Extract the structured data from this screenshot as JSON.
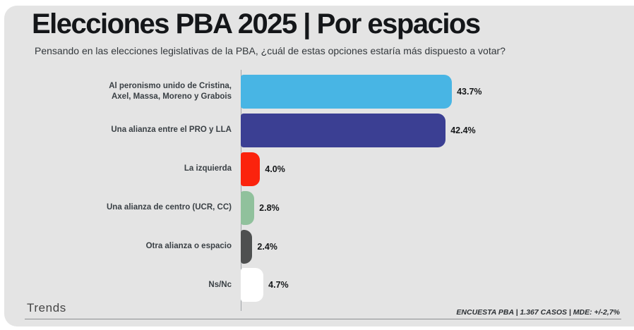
{
  "header": {
    "title": "Elecciones PBA 2025 | Por espacios",
    "subtitle": "Pensando en las elecciones legislativas de la PBA, ¿cuál de estas opciones estaría más dispuesto a votar?"
  },
  "footer": {
    "brand": "Trends",
    "source_note": "ENCUESTA PBA | 1.367 CASOS | MDE: +/-2,7%"
  },
  "colors": {
    "canvas_background": "#E4E4E4",
    "axis_line": "#9FA4A7",
    "title_text": "#141619",
    "label_text": "#3A4045"
  },
  "chart_data": {
    "type": "bar",
    "orientation": "horizontal",
    "title": "Elecciones PBA 2025 | Por espacios",
    "subtitle": "Pensando en las elecciones legislativas de la PBA, ¿cuál de estas opciones estaría más dispuesto a votar?",
    "categories": [
      "Al peronismo unido de Cristina,\nAxel, Massa, Moreno y Grabois",
      "Una alianza entre el PRO y LLA",
      "La izquierda",
      "Una alianza de centro (UCR, CC)",
      "Otra alianza o espacio",
      "Ns/Nc"
    ],
    "values": [
      43.7,
      42.4,
      4.0,
      2.8,
      2.4,
      4.7
    ],
    "value_labels": [
      "43.7%",
      "42.4%",
      "4.0%",
      "2.8%",
      "2.4%",
      "4.7%"
    ],
    "bar_colors": [
      "#48B5E4",
      "#3B3F93",
      "#FB230D",
      "#90C19C",
      "#4E5050",
      "#FFFFFF"
    ],
    "xlim": [
      0,
      45
    ],
    "grid": false,
    "legend": false,
    "data_labels": "outside-end",
    "source_note": "ENCUESTA PBA | 1.367 CASOS | MDE: +/-2,7%"
  }
}
